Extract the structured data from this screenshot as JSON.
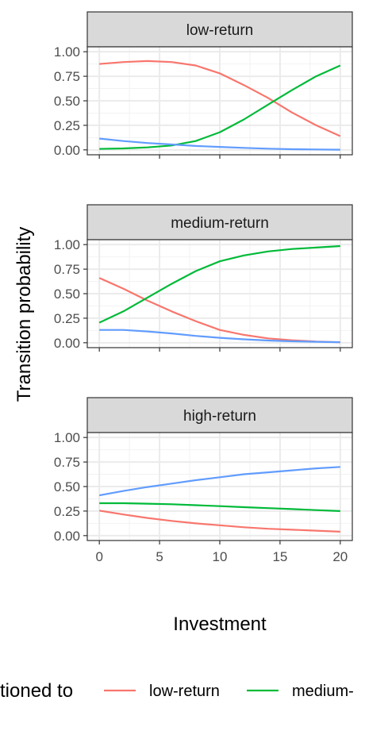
{
  "chart_data": {
    "type": "line",
    "xlabel": "Investment",
    "ylabel": "Transition probability",
    "xlim": [
      -1,
      21
    ],
    "ylim": [
      -0.05,
      1.05
    ],
    "x_ticks": [
      0,
      5,
      10,
      15,
      20
    ],
    "x_tick_labels": [
      "0",
      "5",
      "10",
      "15",
      "20"
    ],
    "y_ticks": [
      0,
      0.25,
      0.5,
      0.75,
      1.0
    ],
    "y_tick_labels": [
      "0.00",
      "0.25",
      "0.50",
      "0.75",
      "1.00"
    ],
    "grid": true,
    "legend": {
      "position": "bottom",
      "title": "tioned to",
      "entries": [
        {
          "label": "low-return",
          "color": "#F8766D"
        },
        {
          "label": "medium-",
          "color": "#00BA38"
        }
      ]
    },
    "x": [
      0,
      2,
      4,
      6,
      8,
      10,
      12,
      14,
      16,
      18,
      20
    ],
    "panels": [
      {
        "strip": "low-return",
        "series": [
          {
            "key": "low-return",
            "color": "#F8766D",
            "values": [
              0.875,
              0.895,
              0.905,
              0.895,
              0.86,
              0.78,
              0.66,
              0.53,
              0.38,
              0.25,
              0.14
            ]
          },
          {
            "key": "medium-return",
            "color": "#00BA38",
            "values": [
              0.01,
              0.015,
              0.025,
              0.045,
              0.09,
              0.18,
              0.31,
              0.46,
              0.61,
              0.75,
              0.86
            ]
          },
          {
            "key": "high-return",
            "color": "#619CFF",
            "values": [
              0.115,
              0.09,
              0.07,
              0.055,
              0.04,
              0.03,
              0.02,
              0.012,
              0.007,
              0.004,
              0.002
            ]
          }
        ]
      },
      {
        "strip": "medium-return",
        "series": [
          {
            "key": "low-return",
            "color": "#F8766D",
            "values": [
              0.66,
              0.55,
              0.43,
              0.32,
              0.22,
              0.13,
              0.08,
              0.045,
              0.025,
              0.012,
              0.005
            ]
          },
          {
            "key": "medium-return",
            "color": "#00BA38",
            "values": [
              0.205,
              0.32,
              0.46,
              0.6,
              0.73,
              0.83,
              0.89,
              0.93,
              0.955,
              0.97,
              0.985
            ]
          },
          {
            "key": "high-return",
            "color": "#619CFF",
            "values": [
              0.13,
              0.13,
              0.115,
              0.095,
              0.07,
              0.05,
              0.035,
              0.023,
              0.015,
              0.01,
              0.005
            ]
          }
        ]
      },
      {
        "strip": "high-return",
        "series": [
          {
            "key": "low-return",
            "color": "#F8766D",
            "values": [
              0.255,
              0.215,
              0.18,
              0.15,
              0.125,
              0.105,
              0.085,
              0.07,
              0.06,
              0.05,
              0.04
            ]
          },
          {
            "key": "medium-return",
            "color": "#00BA38",
            "values": [
              0.33,
              0.33,
              0.325,
              0.32,
              0.31,
              0.3,
              0.29,
              0.28,
              0.27,
              0.26,
              0.25
            ]
          },
          {
            "key": "high-return",
            "color": "#619CFF",
            "values": [
              0.41,
              0.455,
              0.495,
              0.53,
              0.565,
              0.595,
              0.625,
              0.645,
              0.665,
              0.685,
              0.7
            ]
          }
        ]
      }
    ]
  }
}
